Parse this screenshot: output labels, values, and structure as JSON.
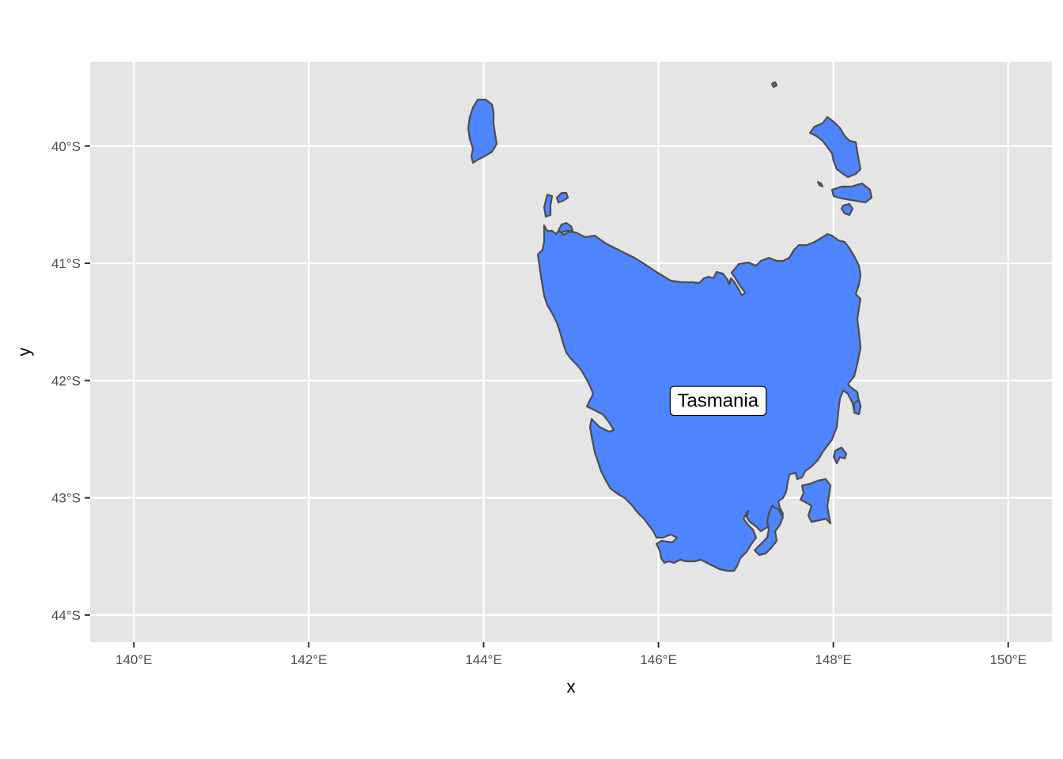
{
  "map": {
    "xlabel": "x",
    "ylabel": "y",
    "x_ticks": [
      {
        "lon": 140,
        "label": "140°E"
      },
      {
        "lon": 142,
        "label": "142°E"
      },
      {
        "lon": 144,
        "label": "144°E"
      },
      {
        "lon": 146,
        "label": "146°E"
      },
      {
        "lon": 148,
        "label": "148°E"
      },
      {
        "lon": 150,
        "label": "150°E"
      }
    ],
    "y_ticks": [
      {
        "lat": -40,
        "label": "40°S"
      },
      {
        "lat": -41,
        "label": "41°S"
      },
      {
        "lat": -42,
        "label": "42°S"
      },
      {
        "lat": -43,
        "label": "43°S"
      },
      {
        "lat": -44,
        "label": "44°S"
      }
    ],
    "xlim": [
      139.5,
      150.5
    ],
    "ylim": [
      -44.23,
      -39.28
    ],
    "grid": true,
    "colors": {
      "panel": "#e5e5e5",
      "grid": "#ffffff",
      "fill": "#4f84ff",
      "outline": "#4d4d4d"
    },
    "place_label": {
      "text": "Tasmania",
      "lon": 146.68,
      "lat": -42.17
    }
  },
  "chart_data": {
    "type": "map",
    "region": "Tasmania",
    "xlabel": "x",
    "ylabel": "y",
    "xlim": [
      139.5,
      150.5
    ],
    "ylim": [
      -44.23,
      -39.28
    ],
    "grid": true
  }
}
